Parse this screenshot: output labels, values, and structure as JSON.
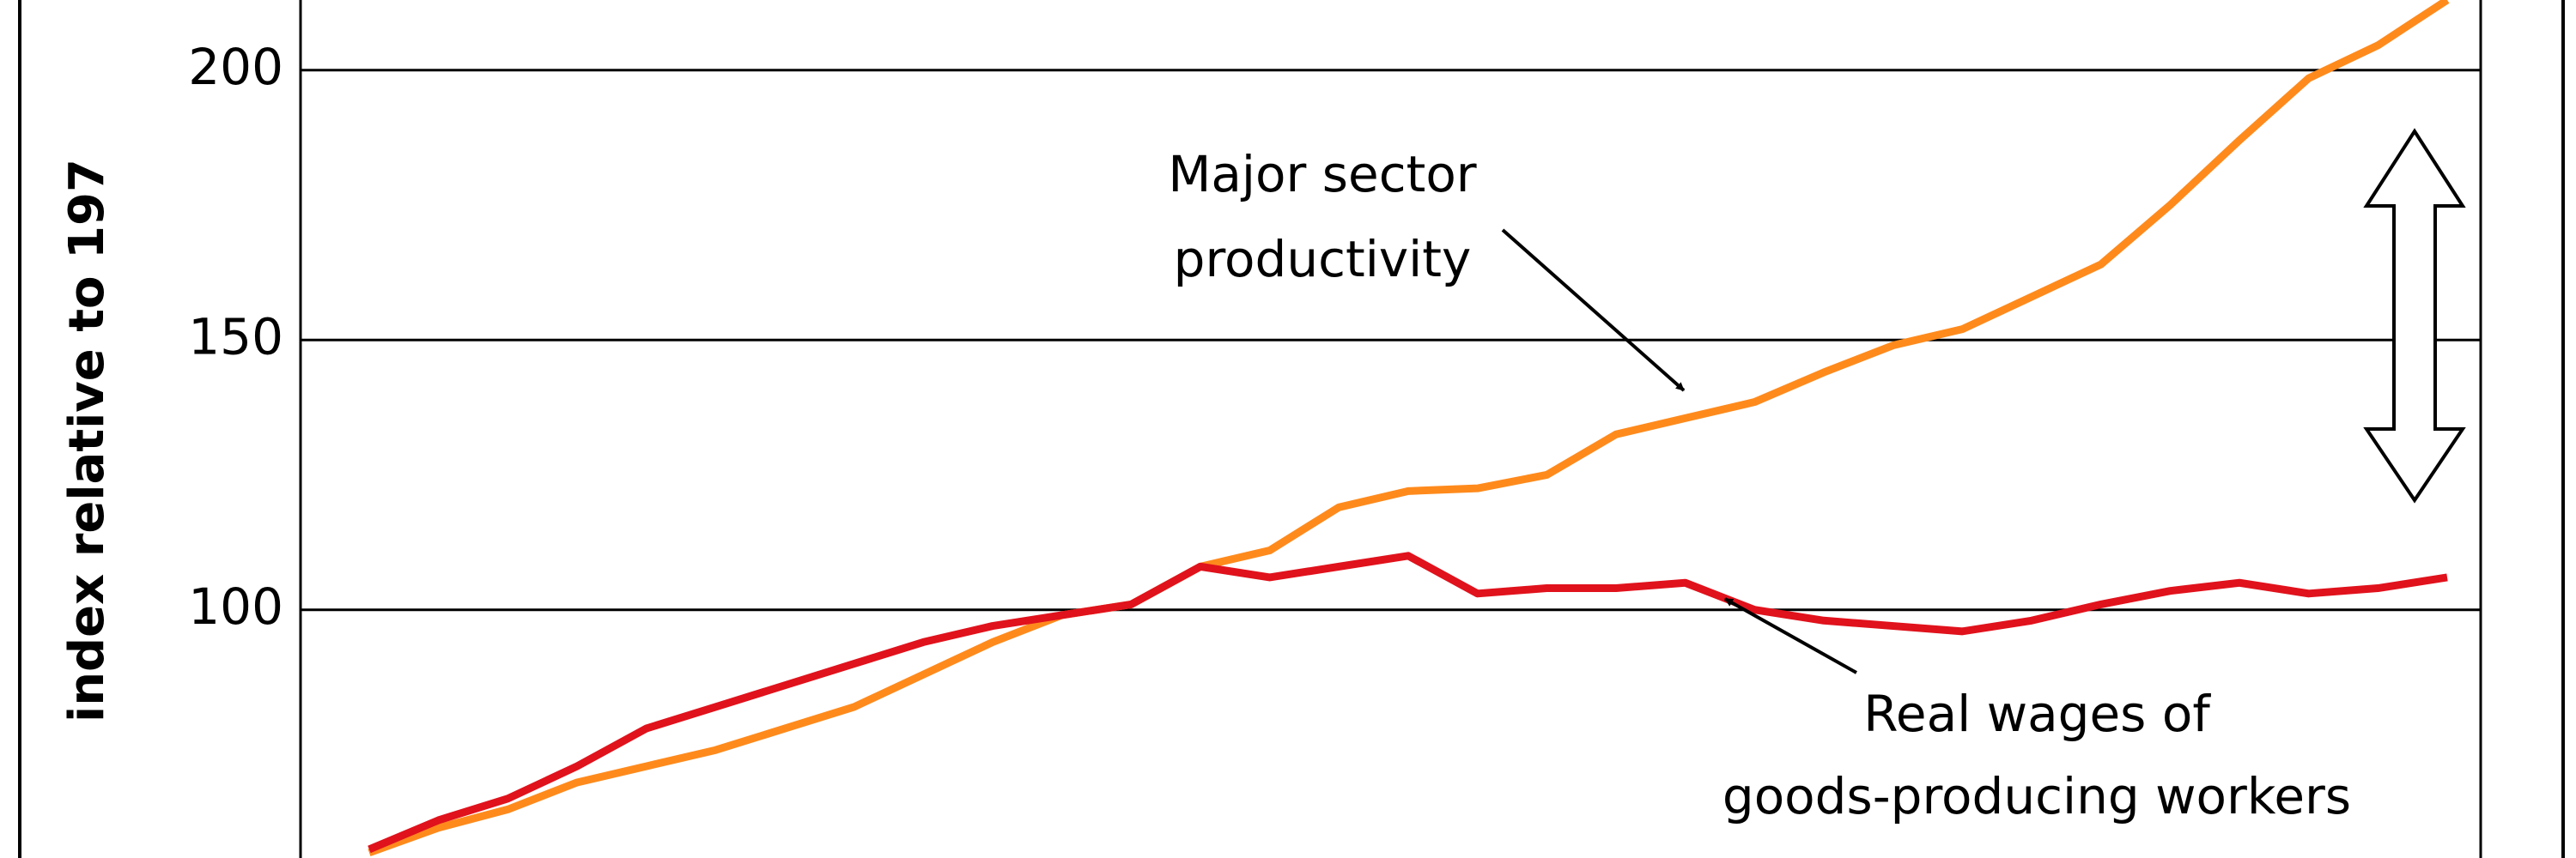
{
  "chart_data": {
    "type": "line",
    "ylabel": "index relative to 197",
    "ylim": [
      54,
      213
    ],
    "yticks": [
      100,
      150,
      200
    ],
    "grid": true,
    "categories": [
      null,
      null,
      null,
      null,
      null,
      null,
      null,
      null,
      null,
      null,
      null,
      null,
      null,
      null,
      null,
      null,
      null,
      null,
      null,
      null,
      null,
      null,
      null,
      null,
      null,
      null,
      null,
      null,
      null,
      null,
      null
    ],
    "series": [
      {
        "name": "Major sector productivity",
        "color": "#ff8a1c",
        "values": [
          55,
          59.6,
          63,
          68,
          71,
          74,
          78,
          82,
          88,
          94,
          99,
          101,
          108,
          111,
          119,
          122,
          122.5,
          125,
          132.5,
          135.5,
          138.5,
          144,
          149,
          152,
          158,
          164,
          175,
          187,
          198.5,
          204.6,
          213
        ]
      },
      {
        "name": "Real wages of goods-producing workers",
        "color": "#e0121c",
        "values": [
          55.6,
          61,
          65,
          71,
          78,
          82,
          86,
          90,
          94,
          97,
          99,
          101,
          108,
          106,
          108,
          110,
          103,
          104,
          104,
          105,
          100,
          98,
          97,
          96,
          98,
          101,
          103.5,
          105,
          103,
          104,
          106
        ]
      }
    ],
    "annotations": [
      {
        "lines": [
          "Major sector",
          "productivity"
        ]
      },
      {
        "lines": [
          "Real wages of",
          "goods-producing workers"
        ]
      }
    ]
  }
}
